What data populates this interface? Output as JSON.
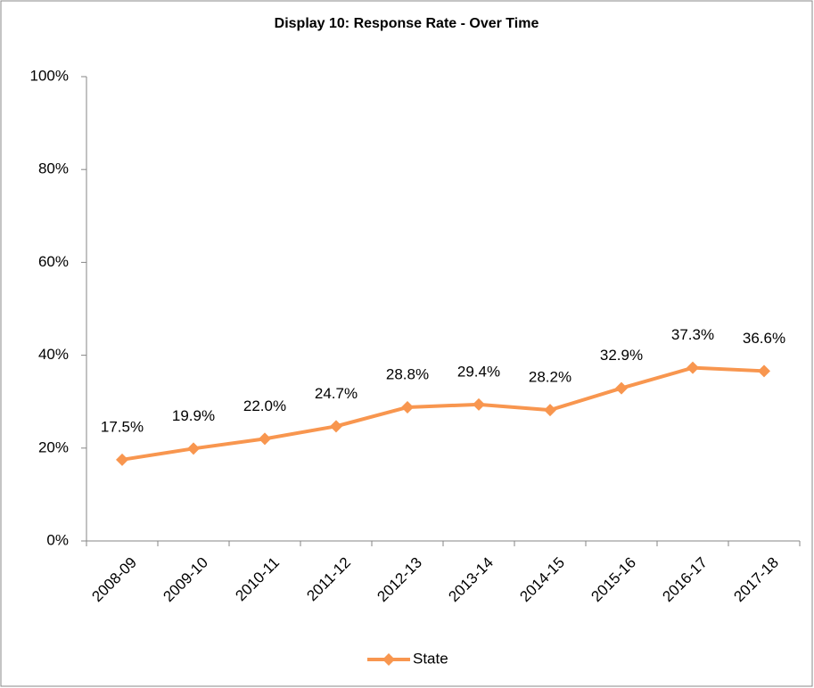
{
  "chart_data": {
    "type": "line",
    "title": "Display 10: Response Rate - Over Time",
    "categories": [
      "2008-09",
      "2009-10",
      "2010-11",
      "2011-12",
      "2012-13",
      "2013-14",
      "2014-15",
      "2015-16",
      "2016-17",
      "2017-18"
    ],
    "series": [
      {
        "name": "State",
        "color": "#f8964f",
        "values": [
          17.5,
          19.9,
          22.0,
          24.7,
          28.8,
          29.4,
          28.2,
          32.9,
          37.3,
          36.6
        ],
        "value_labels": [
          "17.5%",
          "19.9%",
          "22.0%",
          "24.7%",
          "28.8%",
          "29.4%",
          "28.2%",
          "32.9%",
          "37.3%",
          "36.6%"
        ]
      }
    ],
    "ylim": [
      0,
      100
    ],
    "yticks": [
      {
        "value": 0,
        "label": "0%"
      },
      {
        "value": 20,
        "label": "20%"
      },
      {
        "value": 40,
        "label": "40%"
      },
      {
        "value": 60,
        "label": "60%"
      },
      {
        "value": 80,
        "label": "80%"
      },
      {
        "value": 100,
        "label": "100%"
      }
    ],
    "legend": "bottom"
  }
}
